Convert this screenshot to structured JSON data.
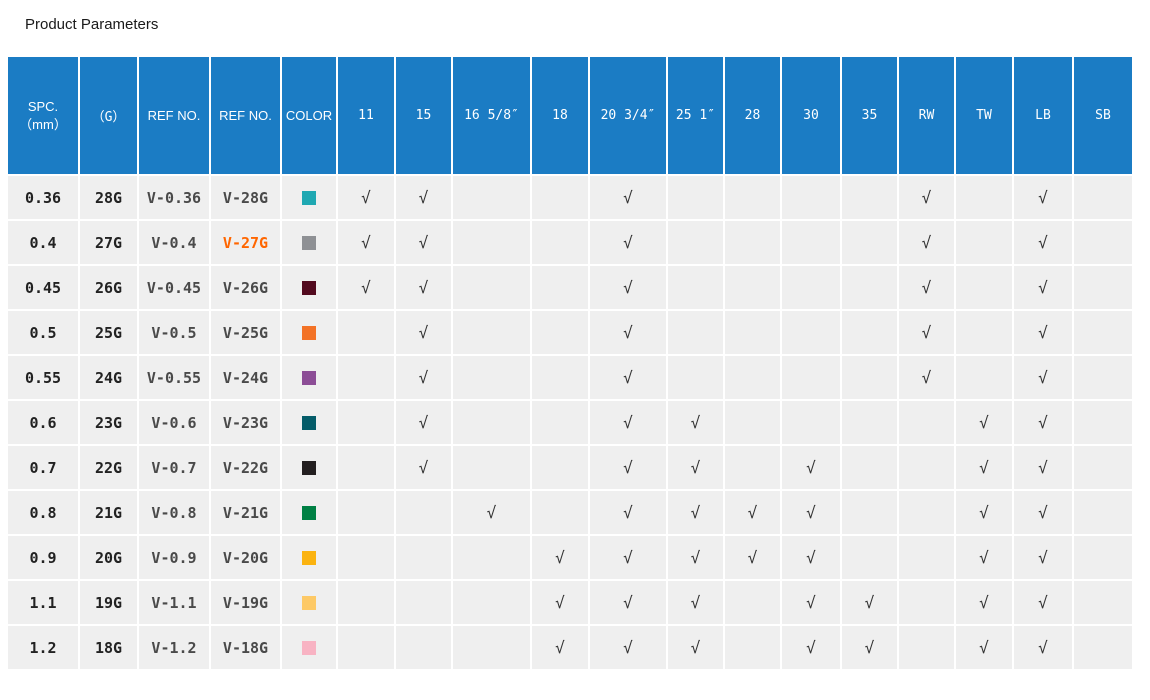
{
  "page": {
    "title": "Product Parameters"
  },
  "colors": {
    "header_blue": "#1b7cc4",
    "cell_background": "#efefef",
    "highlight_orange": "#ff6600"
  },
  "table": {
    "checkmark": "√",
    "columns": [
      {
        "key": "spc",
        "label": "SPC.\n（mm）"
      },
      {
        "key": "gauge",
        "label": "（G）"
      },
      {
        "key": "ref-no-1",
        "label": "REF NO."
      },
      {
        "key": "ref-no-2",
        "label": "REF NO."
      },
      {
        "key": "color",
        "label": "COLOR"
      },
      {
        "key": "11",
        "label": "11"
      },
      {
        "key": "15",
        "label": "15"
      },
      {
        "key": "16",
        "label": "16 5/8″"
      },
      {
        "key": "18",
        "label": "18"
      },
      {
        "key": "20",
        "label": "20 3/4″"
      },
      {
        "key": "25",
        "label": "25 1″"
      },
      {
        "key": "28",
        "label": "28"
      },
      {
        "key": "30",
        "label": "30"
      },
      {
        "key": "35",
        "label": "35"
      },
      {
        "key": "rw",
        "label": "RW"
      },
      {
        "key": "tw",
        "label": "TW"
      },
      {
        "key": "lb",
        "label": "LB"
      },
      {
        "key": "sb",
        "label": "SB"
      }
    ],
    "check_keys": [
      "11",
      "15",
      "16",
      "18",
      "20",
      "25",
      "28",
      "30",
      "35",
      "RW",
      "TW",
      "LB",
      "SB"
    ],
    "rows": [
      {
        "spc": "0.36",
        "g": "28G",
        "ref1": "V-0.36",
        "ref2": "V-28G",
        "highlight": false,
        "swatch": "#1fa8b2",
        "checks": [
          "11",
          "15",
          "20",
          "RW",
          "LB"
        ]
      },
      {
        "spc": "0.4",
        "g": "27G",
        "ref1": "V-0.4",
        "ref2": "V-27G",
        "highlight": true,
        "swatch": "#8e9094",
        "checks": [
          "11",
          "15",
          "20",
          "RW",
          "LB"
        ]
      },
      {
        "spc": "0.45",
        "g": "26G",
        "ref1": "V-0.45",
        "ref2": "V-26G",
        "highlight": false,
        "swatch": "#520a1e",
        "checks": [
          "11",
          "15",
          "20",
          "RW",
          "LB"
        ]
      },
      {
        "spc": "0.5",
        "g": "25G",
        "ref1": "V-0.5",
        "ref2": "V-25G",
        "highlight": false,
        "swatch": "#f37226",
        "checks": [
          "15",
          "20",
          "RW",
          "LB"
        ]
      },
      {
        "spc": "0.55",
        "g": "24G",
        "ref1": "V-0.55",
        "ref2": "V-24G",
        "highlight": false,
        "swatch": "#8c4d96",
        "checks": [
          "15",
          "20",
          "RW",
          "LB"
        ]
      },
      {
        "spc": "0.6",
        "g": "23G",
        "ref1": "V-0.6",
        "ref2": "V-23G",
        "highlight": false,
        "swatch": "#045c69",
        "checks": [
          "15",
          "20",
          "25",
          "TW",
          "LB"
        ]
      },
      {
        "spc": "0.7",
        "g": "22G",
        "ref1": "V-0.7",
        "ref2": "V-22G",
        "highlight": false,
        "swatch": "#231f20",
        "checks": [
          "15",
          "20",
          "25",
          "30",
          "TW",
          "LB"
        ]
      },
      {
        "spc": "0.8",
        "g": "21G",
        "ref1": "V-0.8",
        "ref2": "V-21G",
        "highlight": false,
        "swatch": "#008044",
        "checks": [
          "16",
          "20",
          "25",
          "28",
          "30",
          "TW",
          "LB"
        ]
      },
      {
        "spc": "0.9",
        "g": "20G",
        "ref1": "V-0.9",
        "ref2": "V-20G",
        "highlight": false,
        "swatch": "#fbb310",
        "checks": [
          "18",
          "20",
          "25",
          "28",
          "30",
          "TW",
          "LB"
        ]
      },
      {
        "spc": "1.1",
        "g": "19G",
        "ref1": "V-1.1",
        "ref2": "V-19G",
        "highlight": false,
        "swatch": "#fdc966",
        "checks": [
          "18",
          "20",
          "25",
          "30",
          "35",
          "TW",
          "LB"
        ]
      },
      {
        "spc": "1.2",
        "g": "18G",
        "ref1": "V-1.2",
        "ref2": "V-18G",
        "highlight": false,
        "swatch": "#f8b3c3",
        "checks": [
          "18",
          "20",
          "25",
          "30",
          "35",
          "TW",
          "LB"
        ]
      }
    ]
  }
}
